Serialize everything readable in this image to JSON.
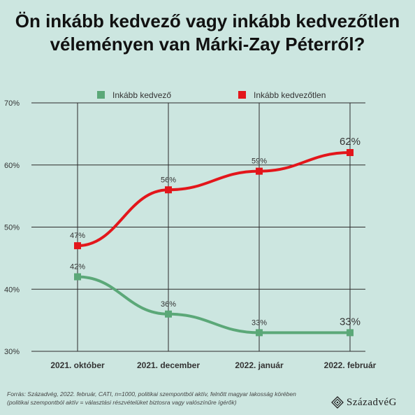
{
  "title": {
    "line1": "Ön inkább kedvező vagy inkább kedvezőtlen",
    "line2": "véleményen van Márki-Zay Péterről?"
  },
  "chart_data": {
    "type": "line",
    "title": "Ön inkább kedvező vagy inkább kedvezőtlen véleményen van Márki-Zay Péterről?",
    "categories": [
      "2021. október",
      "2021. december",
      "2022. január",
      "2022. február"
    ],
    "ylim": [
      30,
      70
    ],
    "yticks": [
      30,
      40,
      50,
      60,
      70
    ],
    "ytick_labels": [
      "30%",
      "40%",
      "50%",
      "60%",
      "70%"
    ],
    "grid": true,
    "legend_position": "top",
    "series": [
      {
        "name": "Inkább kedvező",
        "color": "#5ba878",
        "values": [
          42,
          36,
          33,
          33
        ],
        "labels": [
          "42%",
          "36%",
          "33%",
          "33%"
        ]
      },
      {
        "name": "Inkább kedvezőtlen",
        "color": "#e3161b",
        "values": [
          47,
          56,
          59,
          62
        ],
        "labels": [
          "47%",
          "56%",
          "59%",
          "62%"
        ]
      }
    ]
  },
  "footnote": {
    "line1": "Forrás: Századvég, 2022. február, CATI, n=1000, politikai szempontból aktív, felnőtt magyar lakosság körében",
    "line2": "(politikai szempontból aktív = választási részvételüket biztosra vagy valószínűre ígérők)"
  },
  "brand": {
    "name": "SzázadvéG",
    "icon": "diamond-logo-icon"
  }
}
